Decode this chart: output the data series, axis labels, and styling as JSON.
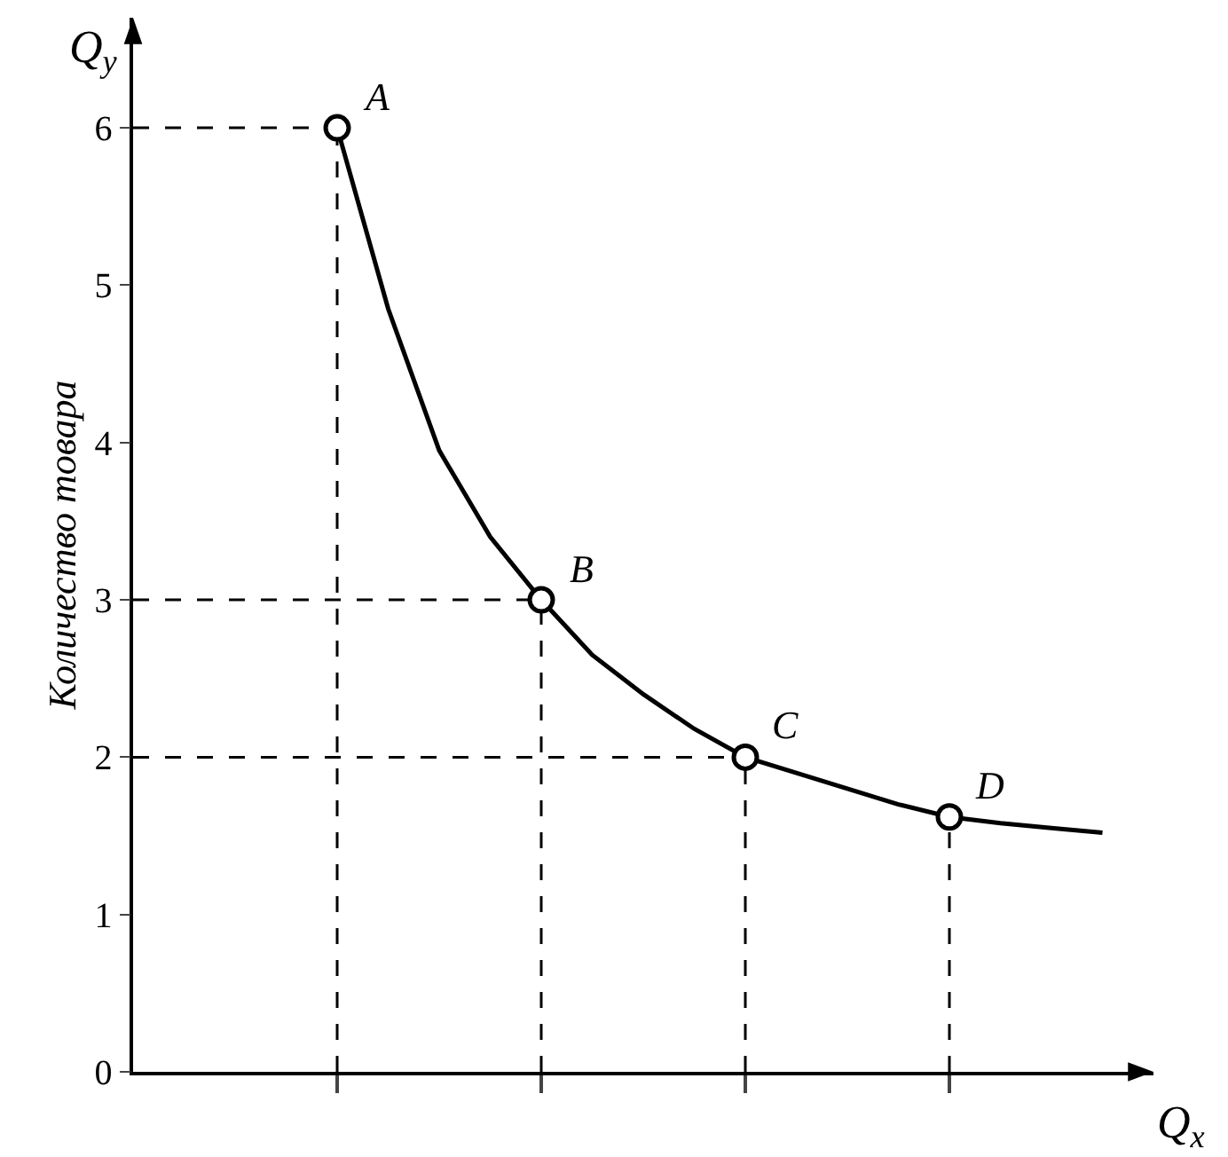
{
  "chart_data": {
    "type": "line",
    "xlabel": "Q$_{x}$",
    "ylabel": "Количество товара",
    "annotations": [
      "Q$_{y}$",
      "A",
      "B",
      "C",
      "D"
    ],
    "categories": [
      null,
      null,
      null,
      null,
      null,
      null,
      null,
      null,
      null,
      null,
      null,
      null,
      null,
      null,
      null,
      null,
      null,
      null,
      null,
      null,
      null
    ],
    "series": [
      {
        "color": "#000000",
        "values": [
          null,
          null,
          null,
          null,
          6,
          4.85,
          3.95,
          3.4,
          3,
          2.65,
          2.4,
          2.18,
          2,
          1.9,
          1.8,
          1.7,
          1.62,
          1.58,
          1.55,
          1.52,
          null
        ]
      },
      {
        "line_style": "dashed",
        "color": "#000000",
        "values": [
          6,
          6,
          6,
          6,
          6,
          null,
          null,
          null,
          null,
          null,
          null,
          null,
          null,
          null,
          null,
          null,
          null,
          null,
          null,
          null,
          null
        ]
      },
      {
        "line_style": "dashed",
        "color": "#000000",
        "values": [
          3,
          3,
          3,
          3,
          3,
          3,
          3,
          3,
          3,
          null,
          null,
          null,
          null,
          null,
          null,
          null,
          null,
          null,
          null,
          null,
          null
        ]
      },
      {
        "line_style": "dashed",
        "color": "#000000",
        "values": [
          2,
          2,
          2,
          2,
          2,
          2,
          2,
          2,
          2,
          2,
          2,
          2,
          2,
          null,
          null,
          null,
          null,
          null,
          null,
          null,
          null
        ]
      },
      {
        "type": "scatter",
        "marker": "circle",
        "color": "#000000",
        "values": [
          null,
          null,
          null,
          null,
          6,
          null,
          null,
          null,
          3,
          null,
          null,
          null,
          2,
          null,
          null,
          null,
          1.62,
          null,
          null,
          null,
          null
        ],
        "errors": [
          null,
          null,
          null,
          null,
          [
            0,
            6
          ],
          null,
          null,
          null,
          [
            0,
            3
          ],
          null,
          null,
          null,
          [
            0,
            2
          ],
          null,
          null,
          null,
          [
            0,
            1.62
          ],
          null,
          null,
          null,
          null
        ]
      }
    ],
    "ylim": [
      0,
      6.7
    ],
    "yticks": [
      0,
      1,
      2,
      3,
      4,
      5,
      6
    ],
    "tick_labels": "y"
  }
}
